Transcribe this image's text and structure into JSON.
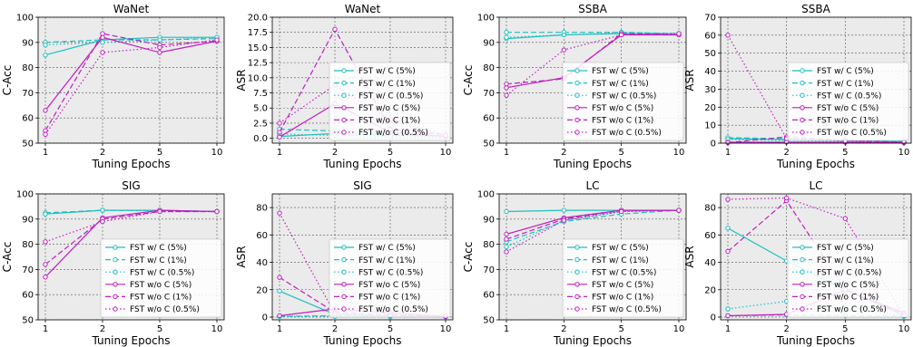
{
  "colors": {
    "cyan": "#1fbfbf",
    "magenta": "#bf1fbf",
    "plot_bg": "#ebebeb",
    "grid": "#555555"
  },
  "chart_data": [
    {
      "type": "line",
      "title": "WaNet",
      "xlabel": "Tuning Epochs",
      "ylabel": "C-Acc",
      "categories": [
        "1",
        "2",
        "5",
        "10"
      ],
      "ylim": [
        50,
        100
      ],
      "yticks": [
        "50",
        "60",
        "70",
        "80",
        "90",
        "100"
      ],
      "grid": true,
      "legend": "none",
      "series": [
        {
          "name": "FST w/ C (5%)",
          "values": [
            85,
            91,
            92,
            92
          ]
        },
        {
          "name": "FST w/ C (1%)",
          "values": [
            90,
            91,
            91,
            91.5
          ]
        },
        {
          "name": "FST w/ C (0.5%)",
          "values": [
            89,
            90,
            91,
            92
          ]
        },
        {
          "name": "FST w/o C (5%)",
          "values": [
            63,
            92,
            86,
            90.5
          ]
        },
        {
          "name": "FST w/o C (1%)",
          "values": [
            55,
            93.5,
            89,
            90.5
          ]
        },
        {
          "name": "FST w/o C (0.5%)",
          "values": [
            53.5,
            86,
            88,
            91
          ]
        }
      ]
    },
    {
      "type": "line",
      "title": "WaNet",
      "xlabel": "Tuning Epochs",
      "ylabel": "ASR",
      "categories": [
        "1",
        "2",
        "5",
        "10"
      ],
      "ylim": [
        -0.8,
        20
      ],
      "yticks": [
        "0.0",
        "2.5",
        "5.0",
        "7.5",
        "10.0",
        "12.5",
        "15.0",
        "17.5",
        "20.0"
      ],
      "grid": true,
      "legend": "lower-right",
      "series": [
        {
          "name": "FST w/ C (5%)",
          "values": [
            0.3,
            0.8,
            0.5,
            0.4
          ]
        },
        {
          "name": "FST w/ C (1%)",
          "values": [
            1.5,
            1.2,
            0.6,
            0.4
          ]
        },
        {
          "name": "FST w/ C (0.5%)",
          "values": [
            0.7,
            0.5,
            0.3,
            0.2
          ]
        },
        {
          "name": "FST w/o C (5%)",
          "values": [
            0.2,
            5.7,
            1.0,
            0.3
          ]
        },
        {
          "name": "FST w/o C (1%)",
          "values": [
            1.0,
            18.0,
            1.5,
            0.6
          ]
        },
        {
          "name": "FST w/o C (0.5%)",
          "values": [
            2.5,
            8.8,
            3.0,
            0.5
          ]
        }
      ]
    },
    {
      "type": "line",
      "title": "SSBA",
      "xlabel": "Tuning Epochs",
      "ylabel": "C-Acc",
      "categories": [
        "1",
        "2",
        "5",
        "10"
      ],
      "ylim": [
        50,
        100
      ],
      "yticks": [
        "50",
        "60",
        "70",
        "80",
        "90",
        "100"
      ],
      "grid": true,
      "legend": "lower-right",
      "series": [
        {
          "name": "FST w/ C (5%)",
          "values": [
            91.5,
            93,
            93.5,
            93.5
          ]
        },
        {
          "name": "FST w/ C (1%)",
          "values": [
            94,
            94,
            94,
            93.5
          ]
        },
        {
          "name": "FST w/ C (0.5%)",
          "values": [
            92,
            93,
            94,
            93.5
          ]
        },
        {
          "name": "FST w/o C (5%)",
          "values": [
            72,
            76,
            93,
            93
          ]
        },
        {
          "name": "FST w/o C (1%)",
          "values": [
            73.5,
            75.5,
            93.5,
            93
          ]
        },
        {
          "name": "FST w/o C (0.5%)",
          "values": [
            69,
            87,
            93,
            93.5
          ]
        }
      ]
    },
    {
      "type": "line",
      "title": "SSBA",
      "xlabel": "Tuning Epochs",
      "ylabel": "ASR",
      "categories": [
        "1",
        "2",
        "5",
        "10"
      ],
      "ylim": [
        0,
        70
      ],
      "yticks": [
        "0",
        "10",
        "20",
        "30",
        "40",
        "50",
        "60",
        "70"
      ],
      "grid": true,
      "legend": "lower-right",
      "series": [
        {
          "name": "FST w/ C (5%)",
          "values": [
            2.5,
            2.0,
            1.5,
            1.0
          ]
        },
        {
          "name": "FST w/ C (1%)",
          "values": [
            3.0,
            2.5,
            1.5,
            1.0
          ]
        },
        {
          "name": "FST w/ C (0.5%)",
          "values": [
            2.0,
            1.5,
            1.0,
            0.8
          ]
        },
        {
          "name": "FST w/o C (5%)",
          "values": [
            0.5,
            0.5,
            0.5,
            0.3
          ]
        },
        {
          "name": "FST w/o C (1%)",
          "values": [
            0.3,
            3.5,
            1.5,
            0.5
          ]
        },
        {
          "name": "FST w/o C (0.5%)",
          "values": [
            60,
            2.5,
            1.2,
            0.5
          ]
        }
      ]
    },
    {
      "type": "line",
      "title": "SIG",
      "xlabel": "Tuning Epochs",
      "ylabel": "C-Acc",
      "categories": [
        "1",
        "2",
        "5",
        "10"
      ],
      "ylim": [
        50,
        100
      ],
      "yticks": [
        "50",
        "60",
        "70",
        "80",
        "90",
        "100"
      ],
      "grid": true,
      "legend": "lower-right",
      "series": [
        {
          "name": "FST w/ C (5%)",
          "values": [
            92,
            93.5,
            93.5,
            93
          ]
        },
        {
          "name": "FST w/ C (1%)",
          "values": [
            92.5,
            93.5,
            93.5,
            93
          ]
        },
        {
          "name": "FST w/ C (0.5%)",
          "values": [
            92,
            93.5,
            93.5,
            93
          ]
        },
        {
          "name": "FST w/o C (5%)",
          "values": [
            67,
            90.5,
            93.5,
            93
          ]
        },
        {
          "name": "FST w/o C (1%)",
          "values": [
            72,
            90,
            93,
            93
          ]
        },
        {
          "name": "FST w/o C (0.5%)",
          "values": [
            81,
            89,
            93,
            93
          ]
        }
      ]
    },
    {
      "type": "line",
      "title": "SIG",
      "xlabel": "Tuning Epochs",
      "ylabel": "ASR",
      "categories": [
        "1",
        "2",
        "5",
        "10"
      ],
      "ylim": [
        -2,
        90
      ],
      "yticks": [
        "0",
        "20",
        "40",
        "60",
        "80"
      ],
      "grid": true,
      "legend": "lower-right",
      "series": [
        {
          "name": "FST w/ C (5%)",
          "values": [
            19,
            2.0,
            0.5,
            0.3
          ]
        },
        {
          "name": "FST w/ C (1%)",
          "values": [
            0.5,
            1.0,
            0.3,
            0.2
          ]
        },
        {
          "name": "FST w/ C (0.5%)",
          "values": [
            0.5,
            0.5,
            0.2,
            0.2
          ]
        },
        {
          "name": "FST w/o C (5%)",
          "values": [
            1.0,
            6.0,
            3.0,
            0.5
          ]
        },
        {
          "name": "FST w/o C (1%)",
          "values": [
            29,
            3.5,
            1.5,
            0.5
          ]
        },
        {
          "name": "FST w/o C (0.5%)",
          "values": [
            76,
            2.5,
            1.0,
            0.5
          ]
        }
      ]
    },
    {
      "type": "line",
      "title": "LC",
      "xlabel": "Tuning Epochs",
      "ylabel": "C-Acc",
      "categories": [
        "1",
        "2",
        "5",
        "10"
      ],
      "ylim": [
        50,
        100
      ],
      "yticks": [
        "50",
        "60",
        "70",
        "80",
        "90",
        "100"
      ],
      "grid": true,
      "legend": "lower-right",
      "series": [
        {
          "name": "FST w/ C (5%)",
          "values": [
            93,
            93.5,
            93.5,
            93.5
          ]
        },
        {
          "name": "FST w/ C (1%)",
          "values": [
            81,
            89,
            92,
            93.5
          ]
        },
        {
          "name": "FST w/ C (0.5%)",
          "values": [
            79,
            89.5,
            93,
            93.5
          ]
        },
        {
          "name": "FST w/o C (5%)",
          "values": [
            84,
            90.5,
            93.5,
            93.5
          ]
        },
        {
          "name": "FST w/o C (1%)",
          "values": [
            82,
            90,
            93.5,
            93.5
          ]
        },
        {
          "name": "FST w/o C (0.5%)",
          "values": [
            77,
            89.5,
            93,
            93.5
          ]
        }
      ]
    },
    {
      "type": "line",
      "title": "LC",
      "xlabel": "Tuning Epochs",
      "ylabel": "ASR",
      "categories": [
        "1",
        "2",
        "5",
        "10"
      ],
      "ylim": [
        -2,
        90
      ],
      "yticks": [
        "0",
        "20",
        "40",
        "60",
        "80"
      ],
      "grid": true,
      "legend": "lower-right",
      "series": [
        {
          "name": "FST w/ C (5%)",
          "values": [
            65,
            41,
            20,
            1.0
          ]
        },
        {
          "name": "FST w/ C (1%)",
          "values": [
            1.0,
            1.5,
            1.0,
            0.5
          ]
        },
        {
          "name": "FST w/ C (0.5%)",
          "values": [
            6,
            11.5,
            5.0,
            1.5
          ]
        },
        {
          "name": "FST w/o C (5%)",
          "values": [
            1.0,
            2.0,
            20,
            3.0
          ]
        },
        {
          "name": "FST w/o C (1%)",
          "values": [
            48,
            85,
            20,
            2.0
          ]
        },
        {
          "name": "FST w/o C (0.5%)",
          "values": [
            86,
            87,
            72,
            1.0
          ]
        }
      ]
    }
  ]
}
